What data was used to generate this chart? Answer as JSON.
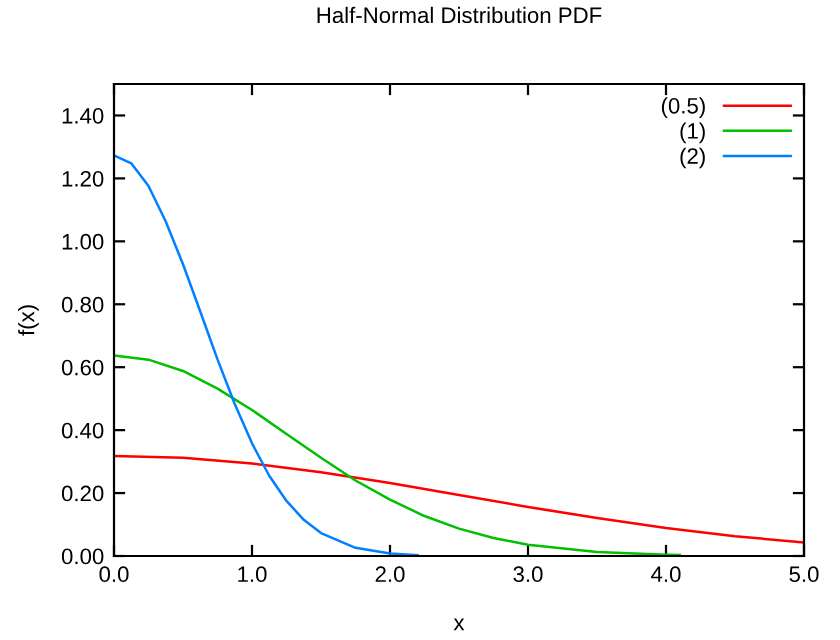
{
  "chart_data": {
    "type": "line",
    "title": "Half-Normal Distribution PDF",
    "xlabel": "x",
    "ylabel": "f(x)",
    "xlim": [
      0,
      5
    ],
    "ylim": [
      0,
      1.5
    ],
    "xticks": [
      {
        "value": 0,
        "label": "0.0"
      },
      {
        "value": 1,
        "label": "1.0"
      },
      {
        "value": 2,
        "label": "2.0"
      },
      {
        "value": 3,
        "label": "3.0"
      },
      {
        "value": 4,
        "label": "4.0"
      },
      {
        "value": 5,
        "label": "5.0"
      }
    ],
    "yticks": [
      {
        "value": 0,
        "label": "0.00"
      },
      {
        "value": 0.2,
        "label": "0.20"
      },
      {
        "value": 0.4,
        "label": "0.40"
      },
      {
        "value": 0.6,
        "label": "0.60"
      },
      {
        "value": 0.8,
        "label": "0.80"
      },
      {
        "value": 1.0,
        "label": "1.00"
      },
      {
        "value": 1.2,
        "label": "1.20"
      },
      {
        "value": 1.4,
        "label": "1.40"
      }
    ],
    "grid": false,
    "legend": "top right",
    "marker": "none",
    "line_style": "solid",
    "series": [
      {
        "name": "(0.5)",
        "color": "#ff0000",
        "x": [
          0,
          0.5,
          1,
          1.5,
          2,
          2.5,
          3,
          3.5,
          4,
          4.5,
          5
        ],
        "values": [
          0.318,
          0.312,
          0.294,
          0.266,
          0.232,
          0.194,
          0.156,
          0.121,
          0.089,
          0.063,
          0.043
        ]
      },
      {
        "name": "(1)",
        "color": "#00c000",
        "x": [
          0,
          0.25,
          0.5,
          0.75,
          1,
          1.25,
          1.5,
          1.75,
          2,
          2.25,
          2.5,
          2.75,
          3,
          3.5,
          4,
          4.1
        ],
        "values": [
          0.637,
          0.624,
          0.588,
          0.532,
          0.464,
          0.388,
          0.312,
          0.24,
          0.179,
          0.127,
          0.087,
          0.057,
          0.036,
          0.013,
          0.004,
          0.003
        ]
      },
      {
        "name": "(2)",
        "color": "#0080ff",
        "x": [
          0,
          0.125,
          0.25,
          0.375,
          0.5,
          0.625,
          0.75,
          0.875,
          1,
          1.125,
          1.25,
          1.375,
          1.5,
          1.75,
          2,
          2.2
        ],
        "values": [
          1.273,
          1.248,
          1.176,
          1.063,
          0.927,
          0.777,
          0.625,
          0.483,
          0.358,
          0.255,
          0.175,
          0.115,
          0.073,
          0.026,
          0.008,
          0.003
        ]
      }
    ]
  }
}
